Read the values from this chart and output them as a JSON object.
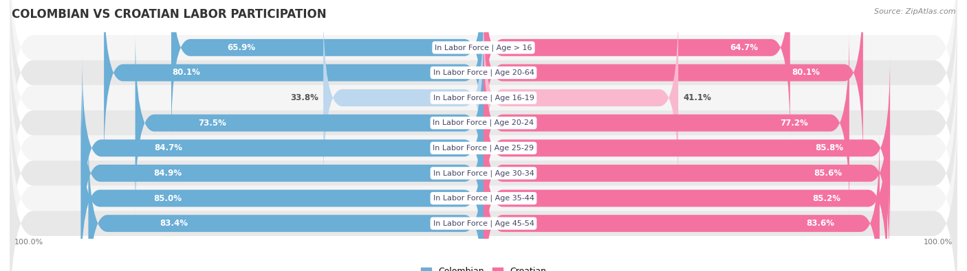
{
  "title": "COLOMBIAN VS CROATIAN LABOR PARTICIPATION",
  "source": "Source: ZipAtlas.com",
  "categories": [
    "In Labor Force | Age > 16",
    "In Labor Force | Age 20-64",
    "In Labor Force | Age 16-19",
    "In Labor Force | Age 20-24",
    "In Labor Force | Age 25-29",
    "In Labor Force | Age 30-34",
    "In Labor Force | Age 35-44",
    "In Labor Force | Age 45-54"
  ],
  "colombian": [
    65.9,
    80.1,
    33.8,
    73.5,
    84.7,
    84.9,
    85.0,
    83.4
  ],
  "croatian": [
    64.7,
    80.1,
    41.1,
    77.2,
    85.8,
    85.6,
    85.2,
    83.6
  ],
  "colombian_color": "#6baed6",
  "colombian_color_light": "#bdd7ee",
  "croatian_color": "#f472a0",
  "croatian_color_light": "#f9b8ce",
  "row_bg_even": "#f5f5f5",
  "row_bg_odd": "#e8e8e8",
  "max_val": 100.0,
  "title_fontsize": 12,
  "label_fontsize": 8.5,
  "tick_fontsize": 8,
  "cat_fontsize": 8
}
